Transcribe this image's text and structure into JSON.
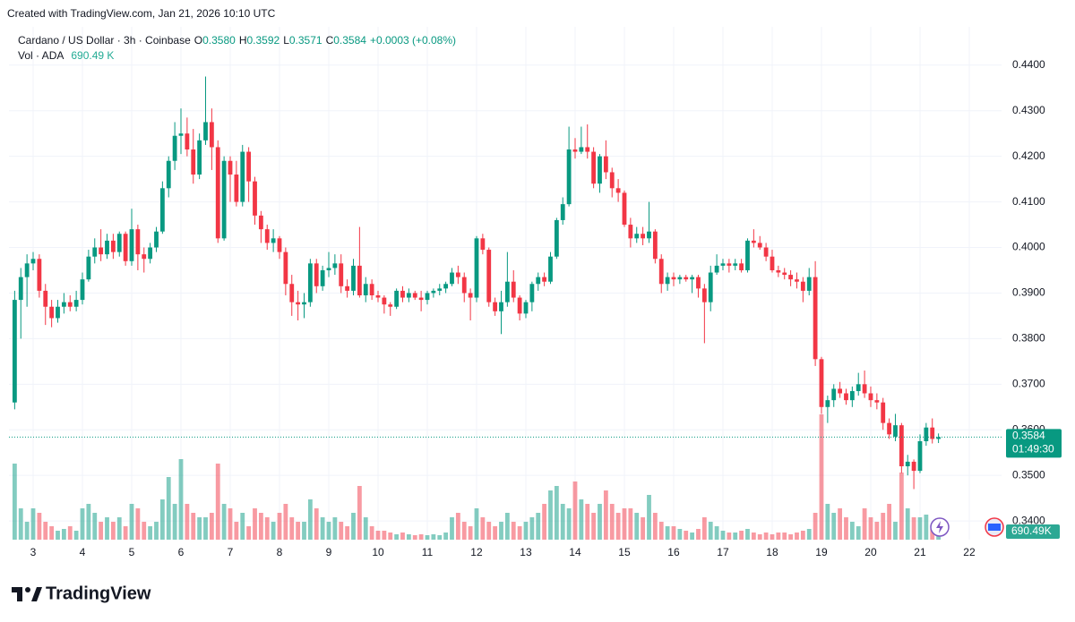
{
  "chart_data": {
    "type": "candlestick",
    "credit": "Created with TradingView.com, Jan 21, 2026 10:10 UTC",
    "legend": {
      "symbol": "Cardano / US Dollar · 3h · Coinbase",
      "o_label": "O",
      "o": "0.3580",
      "h_label": "H",
      "h": "0.3592",
      "l_label": "L",
      "l": "0.3571",
      "c_label": "C",
      "c": "0.3584",
      "change": "+0.0003 (+0.08%)",
      "vol_label": "Vol · ADA",
      "vol": "690.49 K"
    },
    "last_price_label": "0.3584",
    "countdown": "01:49:30",
    "volume_badge": "690.49K",
    "brand": "TradingView",
    "up_color": "#089981",
    "down_color": "#f23645",
    "grid": true,
    "xlim": [
      2.509,
      22.655
    ],
    "xticks": [
      3,
      4,
      5,
      6,
      7,
      8,
      9,
      10,
      11,
      12,
      13,
      14,
      15,
      16,
      17,
      18,
      19,
      20,
      21,
      22
    ],
    "ylim": [
      0.3359,
      0.4484
    ],
    "yticks": [
      {
        "value": 0.34,
        "label": "0.3400"
      },
      {
        "value": 0.35,
        "label": "0.3500"
      },
      {
        "value": 0.36,
        "label": "0.3600"
      },
      {
        "value": 0.37,
        "label": "0.3700"
      },
      {
        "value": 0.38,
        "label": "0.3800"
      },
      {
        "value": 0.39,
        "label": "0.3900"
      },
      {
        "value": 0.4,
        "label": "0.4000"
      },
      {
        "value": 0.41,
        "label": "0.4100"
      },
      {
        "value": 0.42,
        "label": "0.4200"
      },
      {
        "value": 0.43,
        "label": "0.4300"
      },
      {
        "value": 0.44,
        "label": "0.4400"
      }
    ],
    "x": [
      2.625,
      2.75,
      2.875,
      3,
      3.125,
      3.25,
      3.375,
      3.5,
      3.625,
      3.75,
      3.875,
      4,
      4.125,
      4.25,
      4.375,
      4.5,
      4.625,
      4.75,
      4.875,
      5,
      5.125,
      5.25,
      5.375,
      5.5,
      5.625,
      5.75,
      5.875,
      6,
      6.125,
      6.25,
      6.375,
      6.5,
      6.625,
      6.75,
      6.875,
      7,
      7.125,
      7.25,
      7.375,
      7.5,
      7.625,
      7.75,
      7.875,
      8,
      8.125,
      8.25,
      8.375,
      8.5,
      8.625,
      8.75,
      8.875,
      9,
      9.125,
      9.25,
      9.375,
      9.5,
      9.625,
      9.75,
      9.875,
      10,
      10.125,
      10.25,
      10.375,
      10.5,
      10.625,
      10.75,
      10.875,
      11,
      11.125,
      11.25,
      11.375,
      11.5,
      11.625,
      11.75,
      11.875,
      12,
      12.125,
      12.25,
      12.375,
      12.5,
      12.625,
      12.75,
      12.875,
      13,
      13.125,
      13.25,
      13.375,
      13.5,
      13.625,
      13.75,
      13.875,
      14,
      14.125,
      14.25,
      14.375,
      14.5,
      14.625,
      14.75,
      14.875,
      15,
      15.125,
      15.25,
      15.375,
      15.5,
      15.625,
      15.75,
      15.875,
      16,
      16.125,
      16.25,
      16.375,
      16.5,
      16.625,
      16.75,
      16.875,
      17,
      17.125,
      17.25,
      17.375,
      17.5,
      17.625,
      17.75,
      17.875,
      18,
      18.125,
      18.25,
      18.375,
      18.5,
      18.625,
      18.75,
      18.875,
      19,
      19.125,
      19.25,
      19.375,
      19.5,
      19.625,
      19.75,
      19.875,
      20,
      20.125,
      20.25,
      20.375,
      20.5,
      20.625,
      20.75,
      20.875,
      21,
      21.125,
      21.25,
      21.375
    ],
    "open": [
      0.366,
      0.3885,
      0.3935,
      0.3965,
      0.3975,
      0.3905,
      0.387,
      0.3845,
      0.387,
      0.388,
      0.387,
      0.3885,
      0.393,
      0.398,
      0.4,
      0.3985,
      0.4015,
      0.399,
      0.403,
      0.397,
      0.404,
      0.3985,
      0.3975,
      0.4,
      0.4035,
      0.413,
      0.419,
      0.4245,
      0.425,
      0.4215,
      0.416,
      0.4235,
      0.4275,
      0.422,
      0.402,
      0.419,
      0.416,
      0.41,
      0.421,
      0.4145,
      0.407,
      0.404,
      0.401,
      0.402,
      0.399,
      0.392,
      0.388,
      0.3875,
      0.388,
      0.3965,
      0.3915,
      0.395,
      0.3955,
      0.3965,
      0.3915,
      0.3905,
      0.396,
      0.3895,
      0.392,
      0.3895,
      0.389,
      0.3875,
      0.387,
      0.3905,
      0.389,
      0.39,
      0.389,
      0.3885,
      0.39,
      0.3905,
      0.391,
      0.392,
      0.3945,
      0.3935,
      0.39,
      0.389,
      0.402,
      0.3995,
      0.388,
      0.386,
      0.388,
      0.3925,
      0.389,
      0.3855,
      0.388,
      0.392,
      0.3935,
      0.3925,
      0.398,
      0.406,
      0.4095,
      0.4215,
      0.421,
      0.422,
      0.421,
      0.414,
      0.42,
      0.4165,
      0.413,
      0.412,
      0.405,
      0.402,
      0.403,
      0.402,
      0.4035,
      0.3975,
      0.392,
      0.3935,
      0.393,
      0.3935,
      0.393,
      0.3935,
      0.391,
      0.388,
      0.3945,
      0.396,
      0.3965,
      0.396,
      0.3965,
      0.395,
      0.4015,
      0.401,
      0.4,
      0.398,
      0.395,
      0.3945,
      0.394,
      0.393,
      0.3925,
      0.3905,
      0.3935,
      0.3755,
      0.365,
      0.3665,
      0.369,
      0.368,
      0.3665,
      0.3685,
      0.37,
      0.368,
      0.3665,
      0.366,
      0.3615,
      0.3585,
      0.361,
      0.352,
      0.353,
      0.351,
      0.3575,
      0.3605,
      0.358
    ],
    "high": [
      0.3905,
      0.3955,
      0.3985,
      0.399,
      0.3985,
      0.392,
      0.3885,
      0.3885,
      0.39,
      0.3895,
      0.3905,
      0.3945,
      0.3995,
      0.402,
      0.404,
      0.403,
      0.403,
      0.4035,
      0.4035,
      0.4085,
      0.405,
      0.4,
      0.401,
      0.4045,
      0.4145,
      0.42,
      0.4275,
      0.4305,
      0.4285,
      0.426,
      0.425,
      0.4375,
      0.4305,
      0.4235,
      0.42,
      0.42,
      0.419,
      0.4225,
      0.422,
      0.4155,
      0.408,
      0.405,
      0.404,
      0.4025,
      0.4,
      0.394,
      0.3905,
      0.39,
      0.3975,
      0.3975,
      0.396,
      0.399,
      0.3985,
      0.3985,
      0.393,
      0.3975,
      0.4045,
      0.3935,
      0.393,
      0.3905,
      0.3895,
      0.388,
      0.391,
      0.3915,
      0.391,
      0.3905,
      0.3905,
      0.3905,
      0.391,
      0.392,
      0.3925,
      0.3955,
      0.396,
      0.3945,
      0.391,
      0.4025,
      0.403,
      0.4,
      0.389,
      0.3905,
      0.399,
      0.395,
      0.3895,
      0.3885,
      0.3925,
      0.3945,
      0.3945,
      0.399,
      0.4065,
      0.411,
      0.4265,
      0.424,
      0.4265,
      0.427,
      0.422,
      0.4205,
      0.4235,
      0.4175,
      0.415,
      0.4125,
      0.4065,
      0.4045,
      0.4045,
      0.41,
      0.404,
      0.3985,
      0.3945,
      0.3945,
      0.394,
      0.394,
      0.394,
      0.394,
      0.392,
      0.396,
      0.3985,
      0.3975,
      0.3975,
      0.3975,
      0.3975,
      0.402,
      0.404,
      0.4025,
      0.401,
      0.3995,
      0.396,
      0.3955,
      0.395,
      0.3945,
      0.3935,
      0.3955,
      0.397,
      0.376,
      0.3675,
      0.37,
      0.3705,
      0.369,
      0.3695,
      0.3725,
      0.373,
      0.3695,
      0.368,
      0.367,
      0.3625,
      0.3635,
      0.3615,
      0.3545,
      0.3535,
      0.359,
      0.3615,
      0.3625,
      0.3592
    ],
    "low": [
      0.3645,
      0.38,
      0.387,
      0.395,
      0.389,
      0.383,
      0.3825,
      0.3835,
      0.3855,
      0.386,
      0.386,
      0.3875,
      0.3925,
      0.3965,
      0.397,
      0.3975,
      0.3975,
      0.398,
      0.396,
      0.396,
      0.395,
      0.3945,
      0.3965,
      0.399,
      0.403,
      0.411,
      0.417,
      0.4205,
      0.42,
      0.414,
      0.415,
      0.4225,
      0.417,
      0.401,
      0.4015,
      0.41,
      0.409,
      0.409,
      0.41,
      0.405,
      0.401,
      0.3995,
      0.399,
      0.3975,
      0.3895,
      0.385,
      0.384,
      0.3845,
      0.387,
      0.39,
      0.3905,
      0.3935,
      0.394,
      0.39,
      0.389,
      0.3895,
      0.389,
      0.388,
      0.3885,
      0.388,
      0.3855,
      0.385,
      0.3865,
      0.388,
      0.388,
      0.3885,
      0.386,
      0.3875,
      0.389,
      0.3895,
      0.39,
      0.3915,
      0.392,
      0.388,
      0.384,
      0.388,
      0.3985,
      0.387,
      0.385,
      0.381,
      0.387,
      0.388,
      0.384,
      0.3845,
      0.386,
      0.3905,
      0.3915,
      0.392,
      0.3975,
      0.405,
      0.409,
      0.4195,
      0.4205,
      0.4195,
      0.413,
      0.412,
      0.415,
      0.411,
      0.41,
      0.4045,
      0.4,
      0.401,
      0.4005,
      0.401,
      0.3965,
      0.39,
      0.3905,
      0.3915,
      0.392,
      0.3925,
      0.39,
      0.389,
      0.379,
      0.386,
      0.394,
      0.395,
      0.3945,
      0.395,
      0.3945,
      0.3945,
      0.4,
      0.3995,
      0.397,
      0.3945,
      0.3935,
      0.393,
      0.3915,
      0.391,
      0.388,
      0.3895,
      0.374,
      0.3635,
      0.3615,
      0.365,
      0.367,
      0.3655,
      0.365,
      0.3675,
      0.367,
      0.365,
      0.3645,
      0.36,
      0.358,
      0.3575,
      0.3505,
      0.35,
      0.347,
      0.3505,
      0.3565,
      0.357,
      0.3571
    ],
    "close": [
      0.3885,
      0.3935,
      0.3965,
      0.3975,
      0.3905,
      0.387,
      0.3845,
      0.387,
      0.388,
      0.387,
      0.3885,
      0.393,
      0.398,
      0.4,
      0.3985,
      0.4015,
      0.399,
      0.403,
      0.397,
      0.404,
      0.3985,
      0.3975,
      0.4,
      0.4035,
      0.413,
      0.419,
      0.4245,
      0.425,
      0.4215,
      0.416,
      0.4235,
      0.4275,
      0.422,
      0.402,
      0.419,
      0.416,
      0.41,
      0.421,
      0.4145,
      0.407,
      0.404,
      0.401,
      0.402,
      0.399,
      0.392,
      0.388,
      0.3875,
      0.388,
      0.3965,
      0.3915,
      0.395,
      0.3955,
      0.3965,
      0.3915,
      0.3905,
      0.396,
      0.3895,
      0.392,
      0.3895,
      0.389,
      0.3875,
      0.387,
      0.3905,
      0.389,
      0.39,
      0.389,
      0.3885,
      0.39,
      0.3905,
      0.391,
      0.392,
      0.3945,
      0.3935,
      0.39,
      0.389,
      0.402,
      0.3995,
      0.388,
      0.386,
      0.388,
      0.3925,
      0.389,
      0.3855,
      0.388,
      0.392,
      0.3935,
      0.3925,
      0.398,
      0.406,
      0.4095,
      0.4215,
      0.421,
      0.422,
      0.421,
      0.414,
      0.42,
      0.4165,
      0.413,
      0.412,
      0.405,
      0.402,
      0.403,
      0.402,
      0.4035,
      0.3975,
      0.392,
      0.3935,
      0.393,
      0.3935,
      0.393,
      0.3935,
      0.391,
      0.388,
      0.3945,
      0.396,
      0.3965,
      0.396,
      0.3965,
      0.395,
      0.4015,
      0.401,
      0.4,
      0.398,
      0.395,
      0.3945,
      0.394,
      0.393,
      0.3925,
      0.3905,
      0.3935,
      0.3755,
      0.365,
      0.3665,
      0.369,
      0.368,
      0.3665,
      0.3685,
      0.37,
      0.368,
      0.3665,
      0.366,
      0.3615,
      0.359,
      0.361,
      0.352,
      0.353,
      0.351,
      0.3575,
      0.3605,
      0.358,
      0.3584
    ],
    "volume": [
      8500,
      3500,
      2000,
      3500,
      3000,
      2000,
      1500,
      1000,
      1200,
      1500,
      1000,
      3500,
      4000,
      3000,
      2000,
      2500,
      2000,
      2500,
      1500,
      4000,
      3500,
      2000,
      1500,
      2000,
      4500,
      7000,
      4000,
      9000,
      4000,
      3000,
      2500,
      2500,
      3000,
      8500,
      4000,
      3500,
      2000,
      3000,
      1500,
      3500,
      3000,
      2500,
      2000,
      3000,
      4000,
      2500,
      2000,
      2000,
      4500,
      3500,
      2500,
      2000,
      2500,
      2000,
      1500,
      3000,
      6000,
      2500,
      1500,
      1000,
      1000,
      800,
      600,
      800,
      600,
      500,
      600,
      500,
      600,
      500,
      800,
      2500,
      3000,
      2000,
      1500,
      3500,
      2500,
      2000,
      1500,
      2000,
      3000,
      2000,
      1500,
      2000,
      2500,
      3000,
      4000,
      5500,
      6000,
      4000,
      3500,
      6500,
      4500,
      4000,
      3000,
      4000,
      5500,
      4000,
      3000,
      3500,
      3500,
      3000,
      2500,
      5000,
      3000,
      2000,
      1500,
      1500,
      1200,
      1000,
      800,
      1200,
      2500,
      2000,
      1500,
      1000,
      800,
      800,
      1000,
      1200,
      800,
      600,
      800,
      600,
      800,
      800,
      600,
      800,
      1000,
      1200,
      3000,
      14000,
      4000,
      3000,
      3500,
      2500,
      2000,
      1500,
      3500,
      2500,
      2000,
      3000,
      4000,
      2000,
      7500,
      3500,
      2500,
      2500,
      2800,
      1200,
      690.49
    ]
  }
}
